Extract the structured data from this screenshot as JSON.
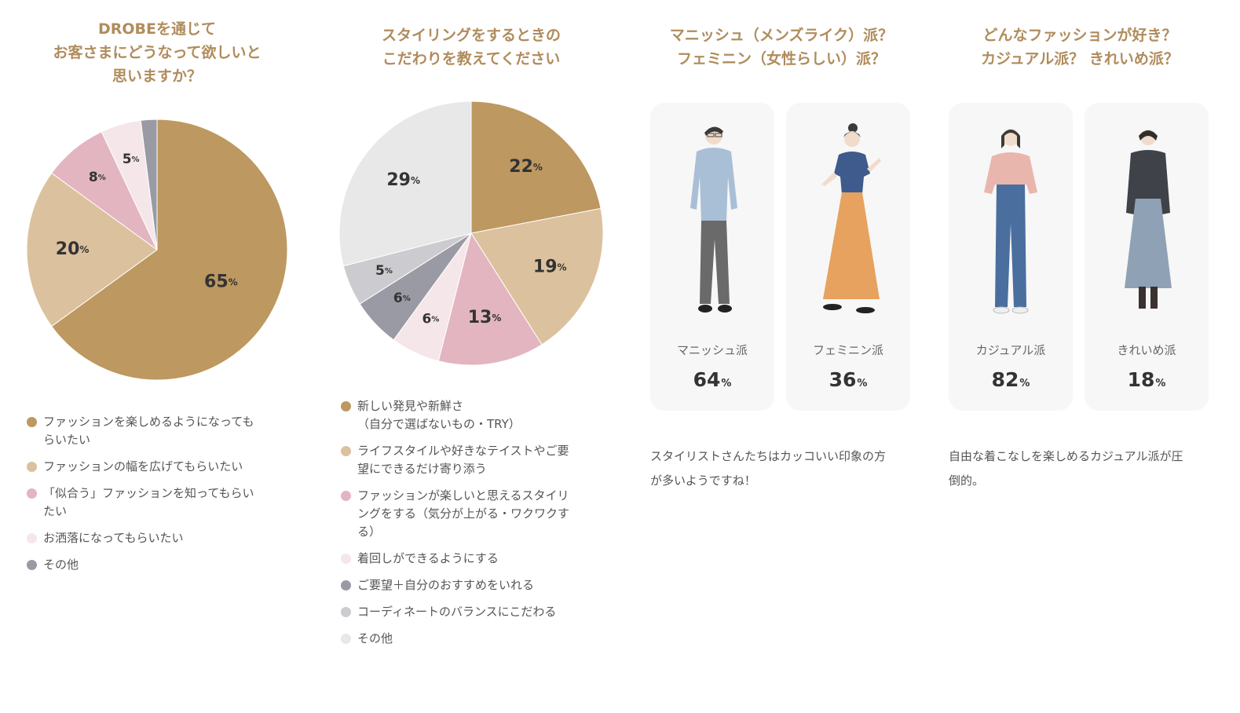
{
  "colors": {
    "accent_title": "#b08c5c",
    "brown": "#bd9860",
    "beige": "#dbc19d",
    "pink": "#e2b5c0",
    "light_pink": "#f5e6ea",
    "gray": "#999aa3",
    "light_gray": "#cbcbd0",
    "pale_gray": "#e8e8e8",
    "card_bg": "#f7f7f7"
  },
  "chart_data": [
    {
      "type": "pie",
      "title": "DROBEを通じて\nお客さまにどうなって欲しいと\n思いますか？",
      "unit": "%",
      "start_angle": "12 o'clock, clockwise",
      "slices": [
        {
          "legend": "ファッションを楽しめるようになってもらいたい",
          "value": 65,
          "color": "#bd9860",
          "label": "65"
        },
        {
          "legend": "ファッションの幅を広げてもらいたい",
          "value": 20,
          "color": "#dbc19d",
          "label": "20"
        },
        {
          "legend": "「似合う」ファッションを知ってもらいたい",
          "value": 8,
          "color": "#e2b5c0",
          "label": "8"
        },
        {
          "legend": "お洒落になってもらいたい",
          "value": 5,
          "color": "#f5e6ea",
          "label": "5"
        },
        {
          "legend": "その他",
          "value": 2,
          "color": "#999aa3",
          "label": ""
        }
      ]
    },
    {
      "type": "pie",
      "title": "スタイリングをするときの\nこだわりを教えてください",
      "unit": "%",
      "start_angle": "12 o'clock, clockwise",
      "slices": [
        {
          "legend": "新しい発見や新鮮さ\n（自分で選ばないもの・TRY）",
          "value": 22,
          "color": "#bd9860",
          "label": "22"
        },
        {
          "legend": "ライフスタイルや好きなテイストやご要望にできるだけ寄り添う",
          "value": 19,
          "color": "#dbc19d",
          "label": "19"
        },
        {
          "legend": "ファッションが楽しいと思えるスタイリングをする（気分が上がる・ワクワクする）",
          "value": 13,
          "color": "#e2b5c0",
          "label": "13"
        },
        {
          "legend": "着回しができるようにする",
          "value": 6,
          "color": "#f5e6ea",
          "label": "6"
        },
        {
          "legend": "ご要望＋自分のおすすめをいれる",
          "value": 6,
          "color": "#999aa3",
          "label": "6"
        },
        {
          "legend": "コーディネートのバランスにこだわる",
          "value": 5,
          "color": "#cbcbd0",
          "label": "5"
        },
        {
          "legend": "その他",
          "value": 29,
          "color": "#e8e8e8",
          "label": "29"
        }
      ]
    },
    {
      "type": "table",
      "title": "マニッシュ（メンズライク）派？\nフェミニン（女性らしい）派？",
      "unit": "%",
      "categories": [
        "マニッシュ派",
        "フェミニン派"
      ],
      "values": [
        64,
        36
      ]
    },
    {
      "type": "table",
      "title": "どんなファッションが好き？\nカジュアル派？ きれいめ派？",
      "unit": "%",
      "categories": [
        "カジュアル派",
        "きれいめ派"
      ],
      "values": [
        82,
        18
      ]
    }
  ],
  "panel1": {
    "title": "DROBEを通じて\nお客さまにどうなって欲しいと\n思いますか？",
    "legend": [
      "ファッションを楽しめるようになっても\nらいたい",
      "ファッションの幅を広げてもらいたい",
      "「似合う」ファッションを知ってもらい\nたい",
      "お洒落になってもらいたい",
      "その他"
    ]
  },
  "panel2": {
    "title": "スタイリングをするときの\nこだわりを教えてください",
    "legend": [
      "新しい発見や新鮮さ\n（自分で選ばないもの・TRY）",
      "ライフスタイルや好きなテイストやご要\n望にできるだけ寄り添う",
      "ファッションが楽しいと思えるスタイリ\nングをする（気分が上がる・ワクワクす\nる）",
      "着回しができるようにする",
      "ご要望＋自分のおすすめをいれる",
      "コーディネートのバランスにこだわる",
      "その他"
    ]
  },
  "panel3": {
    "title": "マニッシュ（メンズライク）派？\nフェミニン（女性らしい）派？",
    "cards": [
      {
        "label": "マニッシュ派",
        "value": "64",
        "unit": "%",
        "figure": "mannish-illustration"
      },
      {
        "label": "フェミニン派",
        "value": "36",
        "unit": "%",
        "figure": "feminine-illustration"
      }
    ],
    "note": "スタイリストさんたちはカッコいい印象の方\nが多いようですね！"
  },
  "panel4": {
    "title": "どんなファッションが好き？\nカジュアル派？ きれいめ派？",
    "cards": [
      {
        "label": "カジュアル派",
        "value": "82",
        "unit": "%",
        "figure": "casual-illustration"
      },
      {
        "label": "きれいめ派",
        "value": "18",
        "unit": "%",
        "figure": "kireime-illustration"
      }
    ],
    "note": "自由な着こなしを楽しめるカジュアル派が圧\n倒的。"
  }
}
